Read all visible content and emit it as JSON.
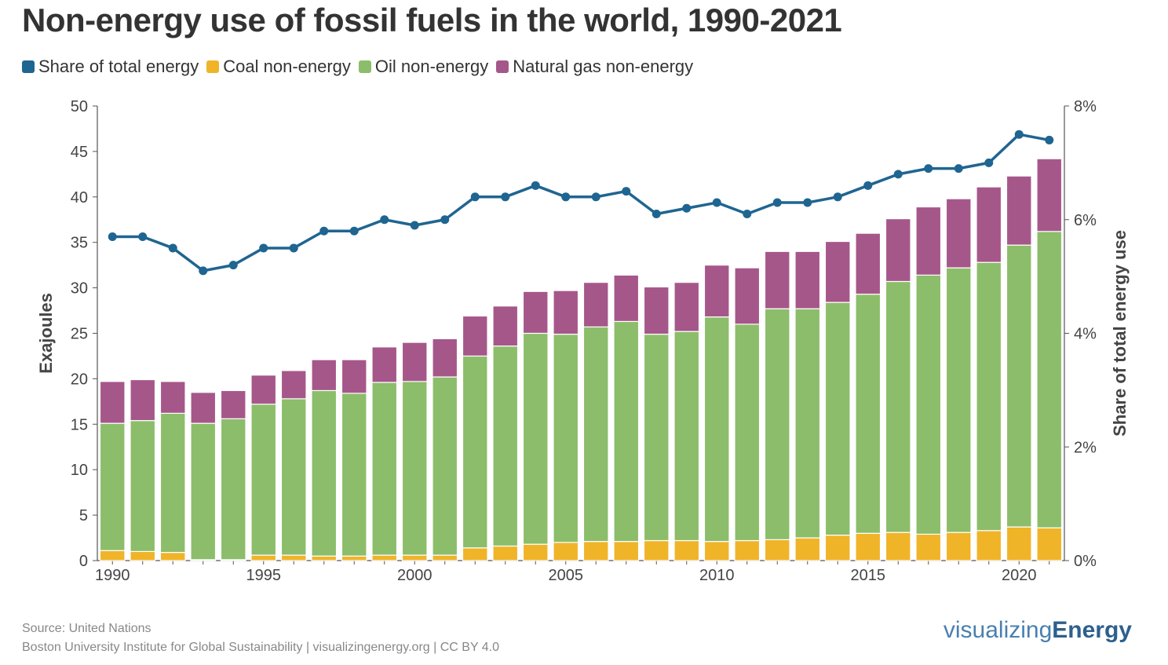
{
  "title": "Non-energy use of fossil fuels in the world, 1990-2021",
  "legend": [
    {
      "label": "Share of total energy",
      "color": "#1f6591"
    },
    {
      "label": "Coal non-energy",
      "color": "#f0b429"
    },
    {
      "label": "Oil non-energy",
      "color": "#8cbd6a"
    },
    {
      "label": "Natural gas non-energy",
      "color": "#a6578a"
    }
  ],
  "source": {
    "line1": "Source: United Nations",
    "line2": "Boston University Institute for Global Sustainability | visualizingenergy.org | CC BY 4.0"
  },
  "brand": {
    "part1": "visualizing",
    "part2": "Energy"
  },
  "chart_data": {
    "type": "bar",
    "stacked": true,
    "x": [
      1990,
      1991,
      1992,
      1993,
      1994,
      1995,
      1996,
      1997,
      1998,
      1999,
      2000,
      2001,
      2002,
      2003,
      2004,
      2005,
      2006,
      2007,
      2008,
      2009,
      2010,
      2011,
      2012,
      2013,
      2014,
      2015,
      2016,
      2017,
      2018,
      2019,
      2020,
      2021
    ],
    "x_ticks": [
      "1990",
      "1995",
      "2000",
      "2005",
      "2010",
      "2015",
      "2020"
    ],
    "ylabel": "Exajoules",
    "ylim": [
      0,
      50
    ],
    "y_ticks": [
      "0",
      "5",
      "10",
      "15",
      "20",
      "25",
      "30",
      "35",
      "40",
      "45",
      "50"
    ],
    "y2label": "Share of total energy use",
    "y2lim": [
      0,
      8
    ],
    "y2_ticks": [
      "0%",
      "2%",
      "4%",
      "6%",
      "8%"
    ],
    "series": [
      {
        "name": "Coal non-energy",
        "color": "#f0b429",
        "values": [
          1.1,
          1.0,
          0.9,
          0.1,
          0.1,
          0.6,
          0.6,
          0.5,
          0.5,
          0.6,
          0.6,
          0.6,
          1.4,
          1.6,
          1.8,
          2.0,
          2.1,
          2.1,
          2.2,
          2.2,
          2.1,
          2.2,
          2.3,
          2.5,
          2.8,
          3.0,
          3.1,
          2.9,
          3.1,
          3.3,
          3.7,
          3.6
        ]
      },
      {
        "name": "Oil non-energy",
        "color": "#8cbd6a",
        "values": [
          14.0,
          14.4,
          15.3,
          15.0,
          15.5,
          16.6,
          17.2,
          18.2,
          17.9,
          19.0,
          19.1,
          19.6,
          21.1,
          22.0,
          23.2,
          22.9,
          23.6,
          24.2,
          22.7,
          23.0,
          24.7,
          23.8,
          25.4,
          25.2,
          25.6,
          26.3,
          27.6,
          28.5,
          29.1,
          29.5,
          31.0,
          32.6
        ]
      },
      {
        "name": "Natural gas non-energy",
        "color": "#a6578a",
        "values": [
          4.6,
          4.5,
          3.5,
          3.4,
          3.1,
          3.2,
          3.1,
          3.4,
          3.7,
          3.9,
          4.3,
          4.2,
          4.4,
          4.4,
          4.6,
          4.8,
          4.9,
          5.1,
          5.2,
          5.4,
          5.7,
          6.2,
          6.3,
          6.3,
          6.7,
          6.7,
          6.9,
          7.5,
          7.6,
          8.3,
          7.6,
          8.0
        ]
      },
      {
        "name": "Share of total energy",
        "color": "#1f6591",
        "axis": "right",
        "kind": "line",
        "values": [
          5.7,
          5.7,
          5.5,
          5.1,
          5.2,
          5.5,
          5.5,
          5.8,
          5.8,
          6.0,
          5.9,
          6.0,
          6.4,
          6.4,
          6.6,
          6.4,
          6.4,
          6.5,
          6.1,
          6.2,
          6.3,
          6.1,
          6.3,
          6.3,
          6.4,
          6.6,
          6.8,
          6.9,
          6.9,
          7.0,
          7.5,
          7.4
        ]
      }
    ],
    "grid": false,
    "legend_position": "top-left"
  }
}
